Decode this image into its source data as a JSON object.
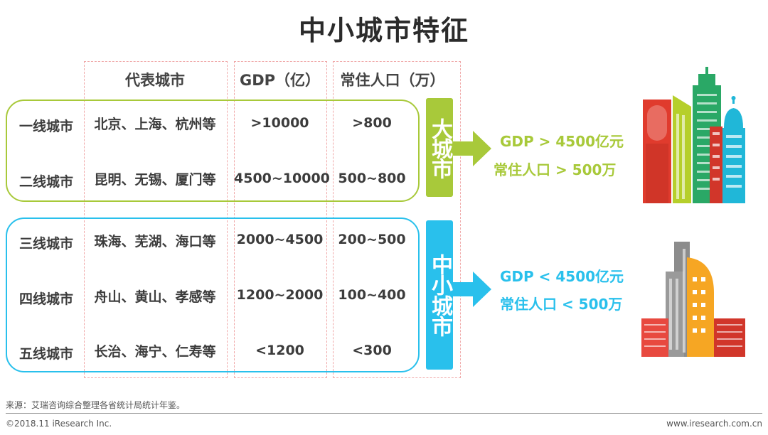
{
  "title": "中小城市特征",
  "headers": {
    "representative": "代表城市",
    "gdp": "GDP（亿）",
    "population": "常住人口（万）"
  },
  "tiers": [
    {
      "label": "一线城市",
      "cities": "北京、上海、杭州等",
      "gdp": ">10000",
      "population": ">800"
    },
    {
      "label": "二线城市",
      "cities": "昆明、无锡、厦门等",
      "gdp": "4500~10000",
      "population": "500~800"
    },
    {
      "label": "三线城市",
      "cities": "珠海、芜湖、海口等",
      "gdp": "2000~4500",
      "population": "200~500"
    },
    {
      "label": "四线城市",
      "cities": "舟山、黄山、孝感等",
      "gdp": "1200~2000",
      "population": "100~400"
    },
    {
      "label": "五线城市",
      "cities": "长治、海宁、仁寿等",
      "gdp": "<1200",
      "population": "<300"
    }
  ],
  "groups": {
    "large": {
      "label": "大城市",
      "color": "#a8c93a",
      "summary_gdp": "GDP > 4500亿元",
      "summary_population": "常住人口  >  500万"
    },
    "small": {
      "label": "中小城市",
      "color": "#29c0ec",
      "summary_gdp": "GDP < 4500亿元",
      "summary_population": "常住人口 < 500万"
    }
  },
  "footer": {
    "source": "来源：艾瑞咨询综合整理各省统计局统计年鉴。",
    "copyright": "©2018.11 iResearch Inc.",
    "website": "www.iresearch.com.cn"
  }
}
